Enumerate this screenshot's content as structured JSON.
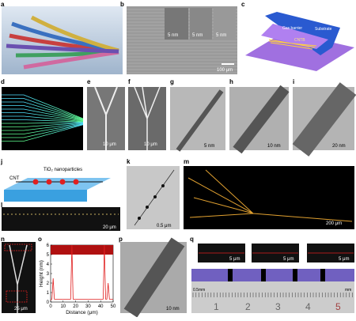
{
  "panels": {
    "a": {
      "label": "a"
    },
    "b": {
      "label": "b",
      "inset_scale_bars": [
        "5 nm",
        "5 nm",
        "5 nm"
      ],
      "scale_bar": "100 μm"
    },
    "c": {
      "label": "c",
      "texts": [
        "Gas barrier",
        "Substrate",
        "CNTB"
      ]
    },
    "d": {
      "label": "d"
    },
    "e": {
      "label": "e",
      "scale_bar": "10 μm"
    },
    "f": {
      "label": "f",
      "scale_bar": "10 μm"
    },
    "g": {
      "label": "g",
      "scale_bar": "5 nm"
    },
    "h": {
      "label": "h",
      "scale_bar": "10 nm"
    },
    "i": {
      "label": "i",
      "scale_bar": "20 nm"
    },
    "j": {
      "label": "j",
      "texts": [
        "CNT",
        "TiO₂ nanoparticles"
      ]
    },
    "k": {
      "label": "k",
      "scale_bar": "0.5 μm"
    },
    "l": {
      "label": "l",
      "scale_bar": "20 μm"
    },
    "m": {
      "label": "m",
      "scale_bar": "200 μm"
    },
    "n": {
      "label": "n",
      "scale_bar": "25 μm"
    },
    "o": {
      "label": "o",
      "chart": {
        "type": "line",
        "ylabel": "Height (nm)",
        "xlabel": "Distance (μm)",
        "x": [
          0,
          1,
          2,
          3,
          16,
          17,
          18,
          42,
          43,
          44,
          45,
          46,
          47,
          50
        ],
        "values": [
          0.2,
          0.3,
          2.5,
          0.3,
          0.3,
          6,
          0.3,
          0.3,
          6,
          0.3,
          0.3,
          2,
          0.3,
          0.3
        ],
        "color": "#e02020",
        "xlim": [
          0,
          50
        ],
        "ylim": [
          0,
          6
        ],
        "xticks": [
          0,
          10,
          20,
          30,
          40,
          50
        ],
        "yticks": [
          0,
          1,
          2,
          3,
          4,
          5,
          6
        ]
      }
    },
    "p": {
      "label": "p",
      "scale_bar": "10 nm"
    },
    "q": {
      "label": "q",
      "inset_scale_bars": [
        "5 μm",
        "5 μm",
        "5 μm"
      ],
      "ruler_numbers": [
        "1",
        "2",
        "3",
        "4",
        "5"
      ],
      "ruler_texts": [
        "0.5mm",
        "mm"
      ]
    }
  }
}
